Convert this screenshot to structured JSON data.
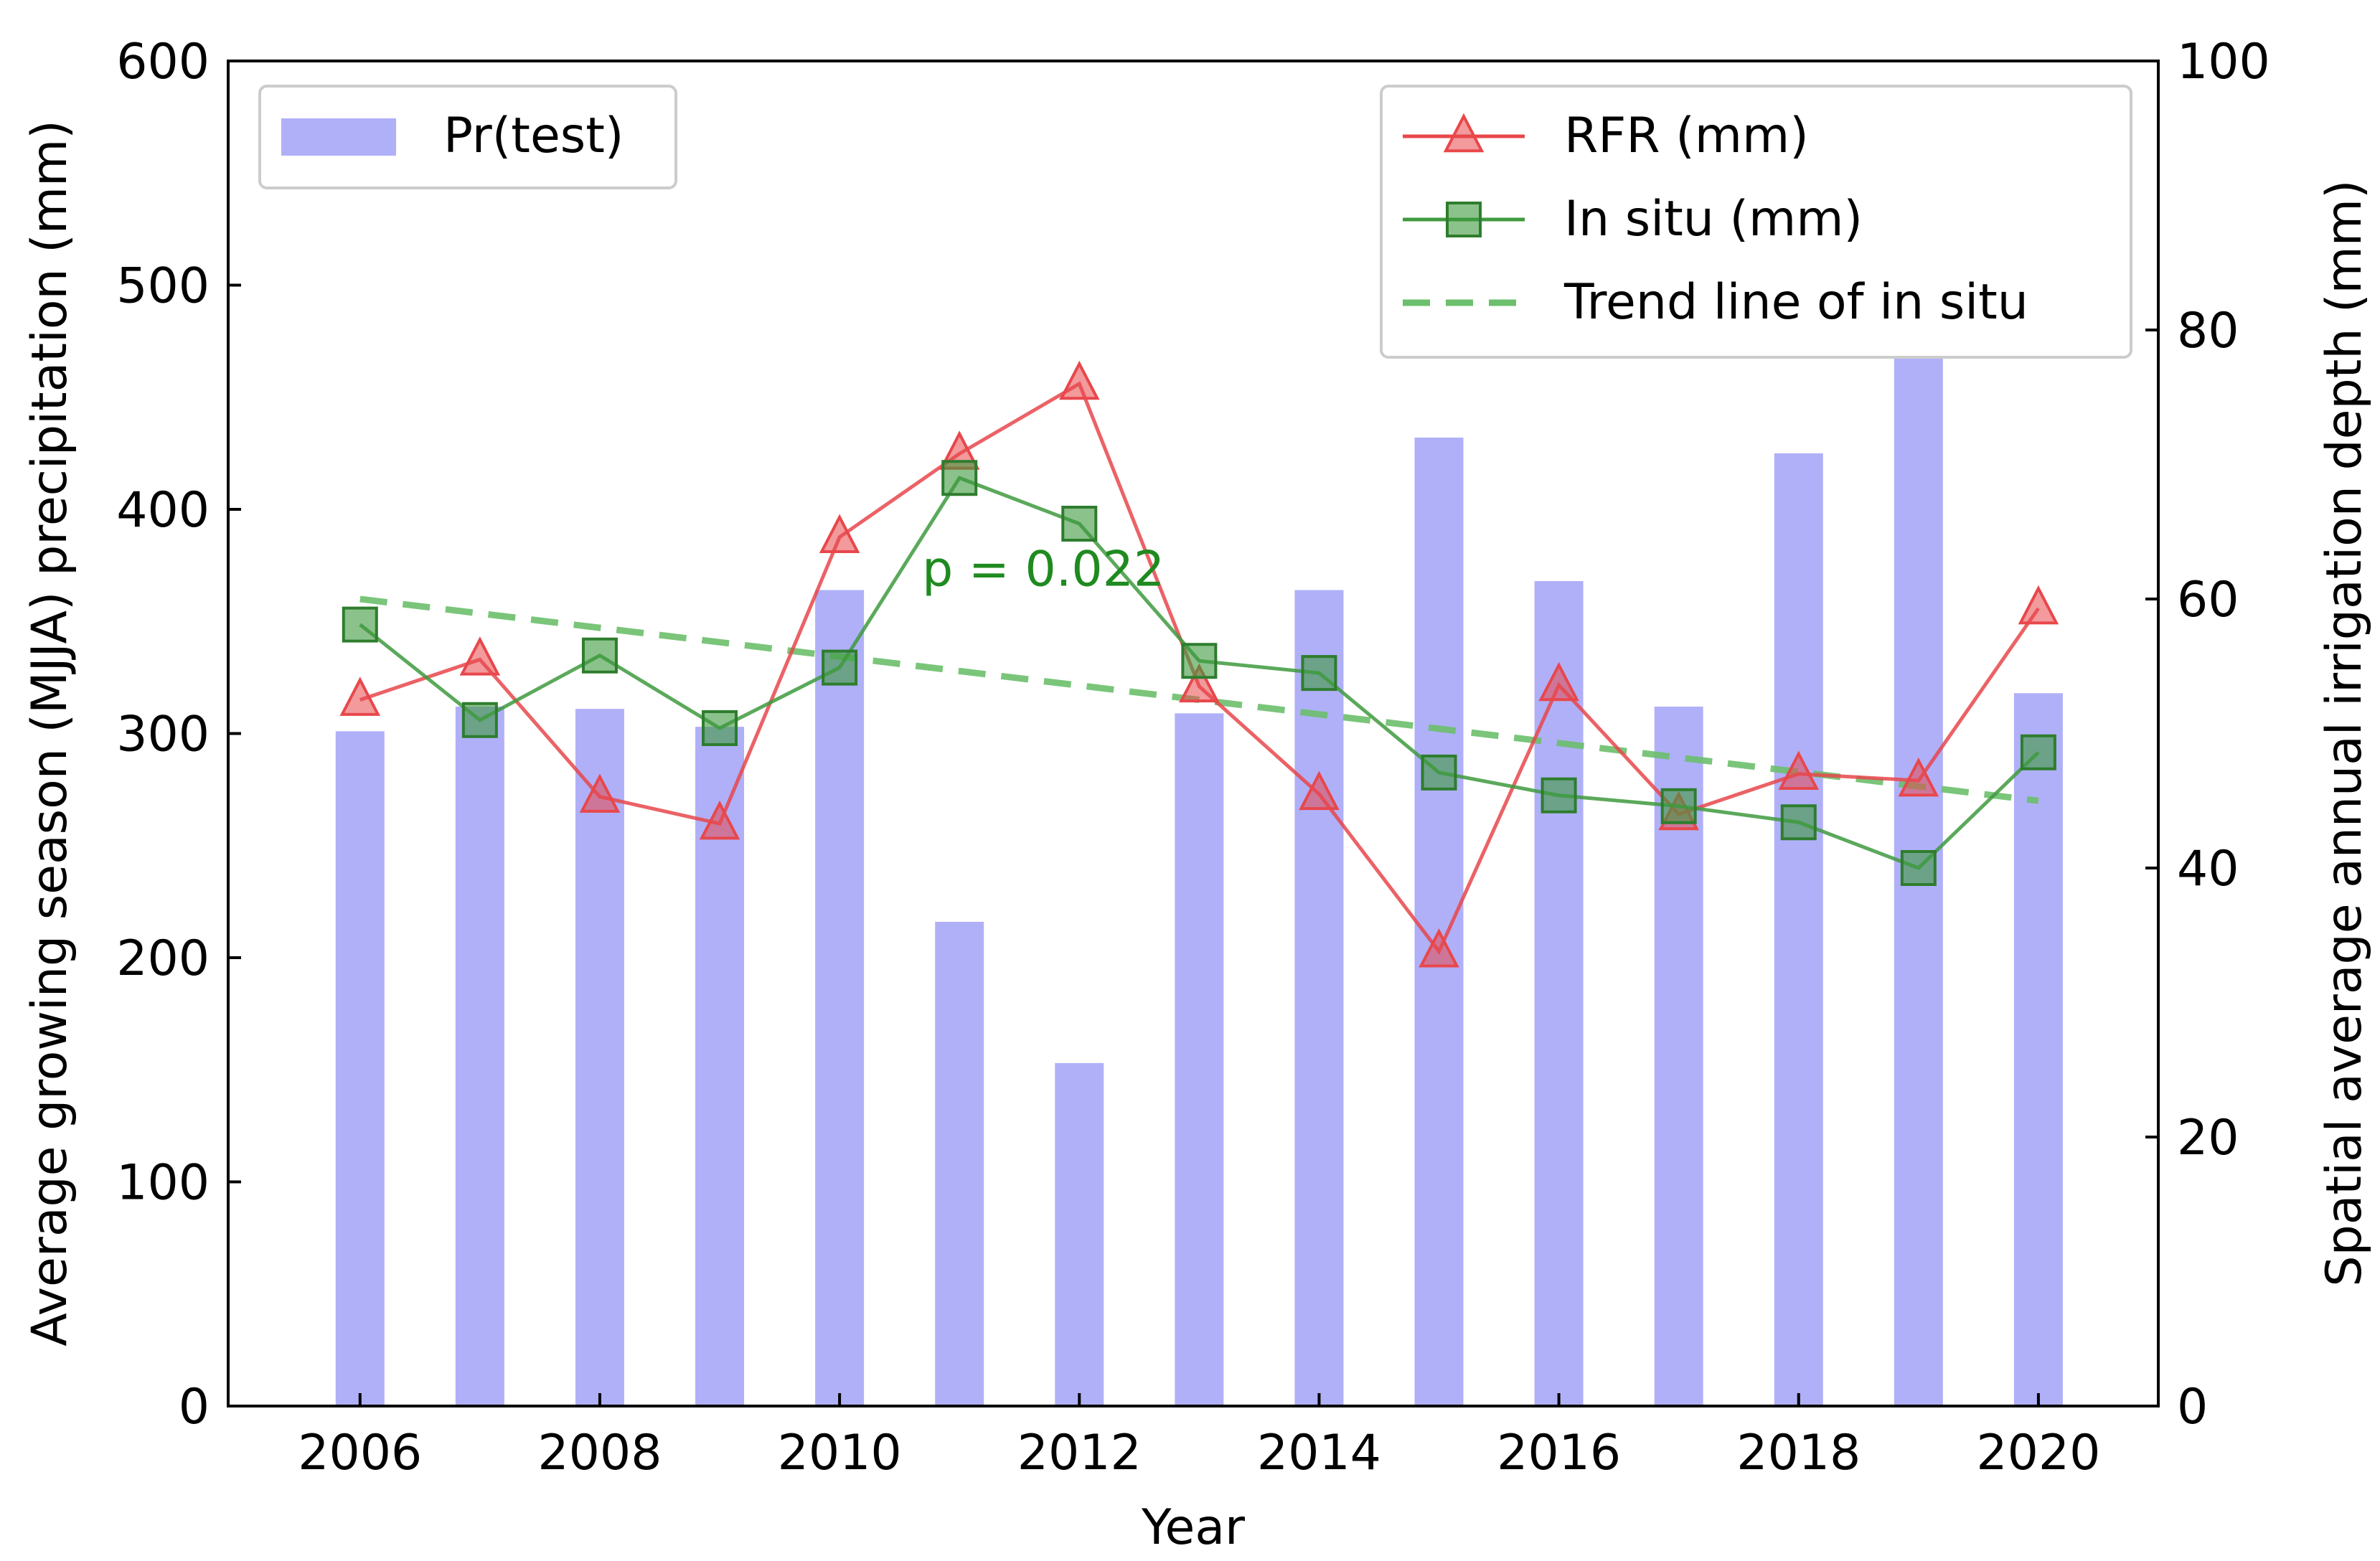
{
  "chart_data": {
    "type": "bar+line",
    "x_years": [
      2006,
      2007,
      2008,
      2009,
      2010,
      2011,
      2012,
      2013,
      2014,
      2015,
      2016,
      2017,
      2018,
      2019,
      2020
    ],
    "xlabel": "Year",
    "ylabel_left": "Average growing season (MJJA) precipitation (mm)",
    "ylabel_right": "Spatial average annual irrigation depth (mm)",
    "ylim_left": [
      0,
      600
    ],
    "ylim_right": [
      0,
      100
    ],
    "xlim": [
      2004.9,
      2021
    ],
    "left_ticks": [
      0,
      100,
      200,
      300,
      400,
      500,
      600
    ],
    "right_ticks": [
      0,
      20,
      40,
      60,
      80,
      100
    ],
    "x_ticks": [
      2006,
      2008,
      2010,
      2012,
      2014,
      2016,
      2018,
      2020
    ],
    "tick_labels_left": [
      "0",
      "100",
      "200",
      "300",
      "400",
      "500",
      "600"
    ],
    "tick_labels_right": [
      "0",
      "20",
      "40",
      "60",
      "80",
      "100"
    ],
    "tick_labels_x": [
      "2006",
      "2008",
      "2010",
      "2012",
      "2014",
      "2016",
      "2018",
      "2020"
    ],
    "bars": {
      "name": "Pr(test)",
      "axis": "left",
      "color": "#b0b0f8",
      "values": [
        301,
        312,
        311,
        303,
        364,
        216,
        153,
        309,
        364,
        432,
        368,
        312,
        425,
        476,
        318
      ]
    },
    "series": [
      {
        "name": "RFR (mm)",
        "axis": "right",
        "color": "#e8474b",
        "marker": "triangle",
        "values": [
          52.5,
          55.5,
          45.3,
          43.3,
          64.6,
          70.8,
          76.0,
          53.5,
          45.5,
          33.8,
          53.6,
          44.0,
          47.0,
          46.5,
          59.3
        ]
      },
      {
        "name": "In situ (mm)",
        "axis": "right",
        "color": "#3e9a3e",
        "marker": "square",
        "values": [
          58.1,
          51.0,
          55.8,
          50.4,
          54.9,
          69.0,
          65.6,
          55.4,
          54.5,
          47.1,
          45.4,
          44.6,
          43.4,
          40.0,
          48.6
        ]
      },
      {
        "name": "Trend line of in situ",
        "axis": "right",
        "color": "#6cbf6c",
        "style": "dashed",
        "x": [
          2006,
          2020
        ],
        "values": [
          60.0,
          45.0
        ]
      }
    ],
    "annotation": {
      "text": "p = 0.022",
      "x": 2011.7,
      "y_right": 61.0
    },
    "legend_left_position": "top-left",
    "legend_right_position": "top-right",
    "grid": false
  }
}
